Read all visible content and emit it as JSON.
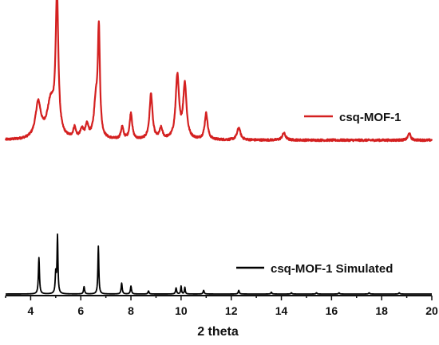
{
  "chart_data": {
    "type": "line",
    "title": "",
    "xlabel": "2 theta",
    "ylabel": "",
    "xlim": [
      3,
      20
    ],
    "x_ticks": [
      4,
      6,
      8,
      10,
      12,
      14,
      16,
      18,
      20
    ],
    "x_tick_labels": [
      "4",
      "6",
      "8",
      "10",
      "12",
      "14",
      "16",
      "18",
      "20"
    ],
    "grid": false,
    "legend_placement": "right, beside each trace",
    "series": [
      {
        "name": "csq-MOF-1",
        "color": "#d42020",
        "baseline": 0.05,
        "noise": 0.006,
        "peaks": [
          {
            "x": 4.3,
            "height": 0.2,
            "width": 0.13
          },
          {
            "x": 4.8,
            "height": 0.2,
            "width": 0.18
          },
          {
            "x": 5.05,
            "height": 0.78,
            "width": 0.065
          },
          {
            "x": 5.75,
            "height": 0.06,
            "width": 0.06
          },
          {
            "x": 6.05,
            "height": 0.05,
            "width": 0.08
          },
          {
            "x": 6.25,
            "height": 0.07,
            "width": 0.07
          },
          {
            "x": 6.6,
            "height": 0.2,
            "width": 0.09
          },
          {
            "x": 6.72,
            "height": 0.6,
            "width": 0.05
          },
          {
            "x": 7.65,
            "height": 0.07,
            "width": 0.06
          },
          {
            "x": 8.0,
            "height": 0.15,
            "width": 0.06
          },
          {
            "x": 8.8,
            "height": 0.26,
            "width": 0.07
          },
          {
            "x": 9.2,
            "height": 0.06,
            "width": 0.07
          },
          {
            "x": 9.85,
            "height": 0.36,
            "width": 0.08
          },
          {
            "x": 10.15,
            "height": 0.31,
            "width": 0.08
          },
          {
            "x": 11.0,
            "height": 0.15,
            "width": 0.07
          },
          {
            "x": 12.3,
            "height": 0.07,
            "width": 0.08
          },
          {
            "x": 14.1,
            "height": 0.04,
            "width": 0.08
          },
          {
            "x": 19.1,
            "height": 0.04,
            "width": 0.06
          }
        ]
      },
      {
        "name": "csq-MOF-1 Simulated",
        "color": "#000000",
        "baseline": 0.0,
        "noise": 0.0,
        "peaks": [
          {
            "x": 4.33,
            "height": 0.6,
            "width": 0.025
          },
          {
            "x": 5.0,
            "height": 0.33,
            "width": 0.025
          },
          {
            "x": 5.07,
            "height": 0.95,
            "width": 0.022
          },
          {
            "x": 6.13,
            "height": 0.12,
            "width": 0.025
          },
          {
            "x": 6.7,
            "height": 0.79,
            "width": 0.022
          },
          {
            "x": 7.63,
            "height": 0.18,
            "width": 0.025
          },
          {
            "x": 8.0,
            "height": 0.13,
            "width": 0.025
          },
          {
            "x": 8.7,
            "height": 0.05,
            "width": 0.025
          },
          {
            "x": 9.8,
            "height": 0.1,
            "width": 0.025
          },
          {
            "x": 10.0,
            "height": 0.13,
            "width": 0.02
          },
          {
            "x": 10.15,
            "height": 0.11,
            "width": 0.02
          },
          {
            "x": 10.9,
            "height": 0.06,
            "width": 0.025
          },
          {
            "x": 12.3,
            "height": 0.06,
            "width": 0.025
          },
          {
            "x": 13.6,
            "height": 0.03,
            "width": 0.025
          },
          {
            "x": 14.4,
            "height": 0.02,
            "width": 0.025
          },
          {
            "x": 15.4,
            "height": 0.02,
            "width": 0.025
          },
          {
            "x": 16.3,
            "height": 0.02,
            "width": 0.025
          },
          {
            "x": 17.5,
            "height": 0.02,
            "width": 0.025
          },
          {
            "x": 18.7,
            "height": 0.02,
            "width": 0.025
          }
        ]
      }
    ]
  }
}
